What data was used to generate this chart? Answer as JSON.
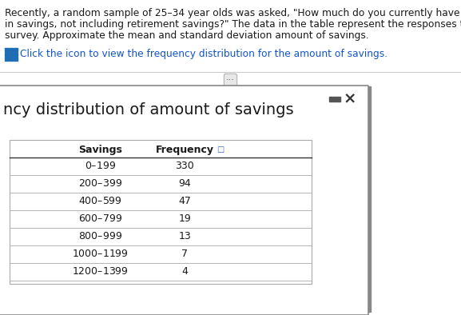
{
  "intro_line1": "Recently, a random sample of 25–34 year olds was asked, \"How much do you currently have",
  "intro_line2": "in savings, not including retirement savings?\" The data in the table represent the responses to the",
  "intro_line3": "survey. Approximate the mean and standard deviation amount of savings.",
  "click_text": "Click the icon to view the frequency distribution for the amount of savings.",
  "popup_title": "ncy distribution of amount of savings",
  "col_savings": "Savings",
  "col_frequency": "Frequency",
  "savings": [
    "$0–$199",
    "$200–$399",
    "$400–$599",
    "$600–$799",
    "$800–$999",
    "$1000–$1199",
    "$1200–$1399"
  ],
  "frequencies": [
    "330",
    "94",
    "47",
    "19",
    "13",
    "7",
    "4"
  ],
  "bg_color": "#ffffff",
  "text_color": "#1a1a1a",
  "link_color": "#1155cc",
  "popup_border_color": "#888888",
  "table_border_color": "#aaaaaa",
  "icon_blue": "#1f6db5",
  "separator_color": "#cccccc",
  "ellipsis_bg": "#e8e8e8",
  "ellipsis_border": "#aaaaaa",
  "minimize_color": "#555555",
  "close_color": "#333333",
  "intro_fontsize": 8.8,
  "click_fontsize": 8.8,
  "popup_title_fontsize": 14,
  "table_header_fontsize": 9,
  "table_data_fontsize": 9
}
